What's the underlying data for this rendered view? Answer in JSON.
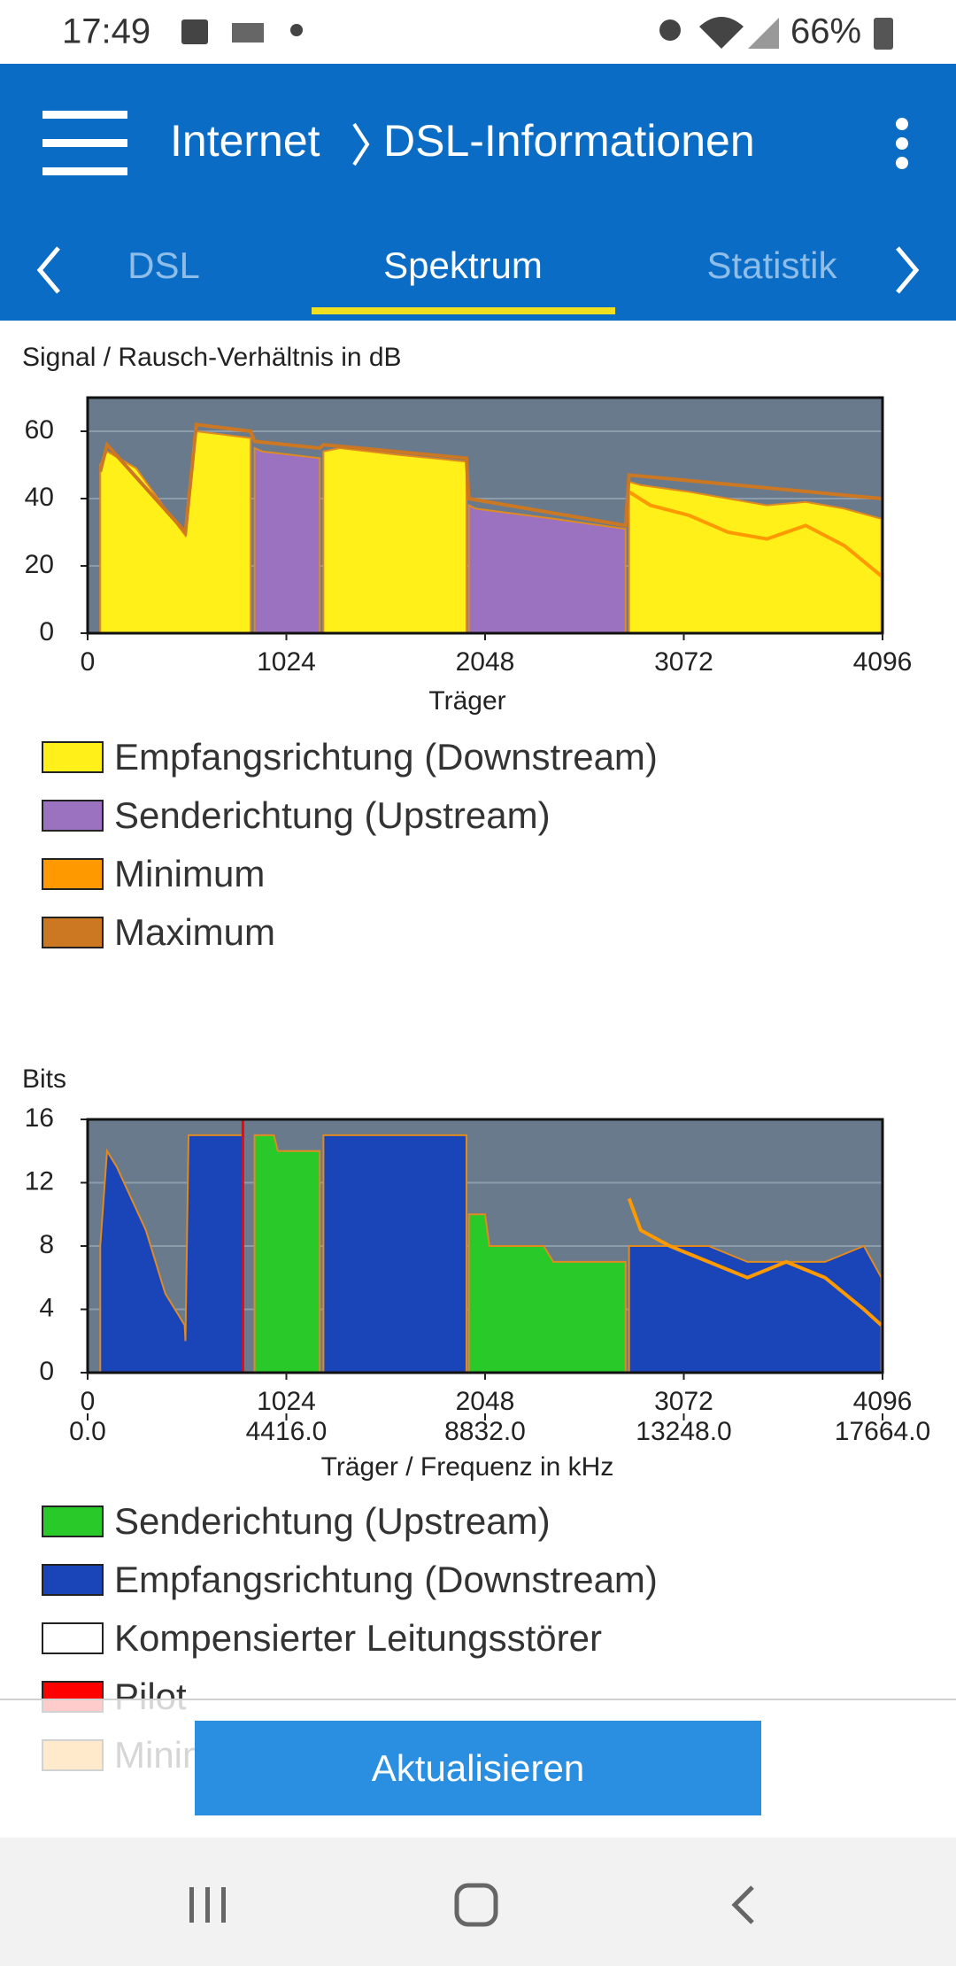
{
  "status_bar": {
    "time": "17:49",
    "battery": "66%"
  },
  "app_bar": {
    "section": "Internet",
    "page": "DSL-Informationen"
  },
  "tabs": [
    "DSL",
    "Spektrum",
    "Statistik"
  ],
  "chart_data": [
    {
      "type": "area",
      "title": "Signal / Rausch-Verhältnis in dB",
      "x_label": "Träger",
      "xlim": [
        0,
        4096
      ],
      "xticks": [
        0,
        1024,
        2048,
        3072,
        4096
      ],
      "ylim": [
        0,
        70
      ],
      "yticks": [
        0,
        20,
        40,
        60
      ],
      "grid": true,
      "series": [
        {
          "name": "Empfangsrichtung (Downstream)",
          "color": "#fff01a",
          "style": "area",
          "x": [
            65,
            100,
            250,
            400,
            504,
            530,
            560,
            700,
            840,
            1000,
            1215,
            1300,
            1600,
            1952,
            2300,
            2790,
            2850,
            3100,
            3300,
            3500,
            3700,
            3900,
            4090
          ],
          "values": [
            50,
            54,
            49,
            37,
            29,
            45,
            60,
            59,
            58,
            null,
            54,
            55,
            53,
            51,
            null,
            45,
            44,
            42,
            40,
            38,
            39,
            37,
            34
          ]
        },
        {
          "name": "Senderichtung (Upstream)",
          "color": "#9b72c0",
          "style": "area",
          "x": [
            860,
            900,
            1196,
            1500,
            1964,
            2000,
            2400,
            2772
          ],
          "values": [
            55,
            54,
            52,
            null,
            38,
            37,
            34,
            31
          ]
        },
        {
          "name": "Minimum",
          "color": "#ff9900",
          "style": "line",
          "x": [
            2790,
            2900,
            3100,
            3300,
            3500,
            3700,
            3900,
            4090
          ],
          "values": [
            42,
            38,
            35,
            30,
            28,
            32,
            26,
            17
          ]
        },
        {
          "name": "Maximum",
          "color": "#cc7722",
          "style": "line",
          "x": [
            65,
            100,
            504,
            560,
            840,
            860,
            1196,
            1215,
            1952,
            1964,
            2772,
            2790,
            4090
          ],
          "values": [
            48,
            56,
            30,
            62,
            60,
            57,
            55,
            56,
            52,
            40,
            32,
            47,
            40
          ]
        }
      ]
    },
    {
      "type": "area",
      "title": "Bits",
      "x_label": "Träger / Frequenz in kHz",
      "xlim": [
        0,
        4096
      ],
      "xticks": [
        0,
        1024,
        2048,
        3072,
        4096
      ],
      "x2lim": [
        0,
        17664
      ],
      "x2ticks": [
        {
          "value": 0,
          "label": "0.0"
        },
        {
          "value": 4416,
          "label": "4416.0"
        },
        {
          "value": 8832,
          "label": "8832.0"
        },
        {
          "value": 13248,
          "label": "13248.0"
        },
        {
          "value": 17664,
          "label": "17664.0"
        }
      ],
      "ylim": [
        0,
        16
      ],
      "yticks": [
        0,
        4,
        8,
        12,
        16
      ],
      "grid": true,
      "series": [
        {
          "name": "Senderichtung (Upstream)",
          "color": "#2ac92a",
          "style": "area",
          "x": [
            860,
            960,
            980,
            1196,
            1500,
            1964,
            2048,
            2070,
            2350,
            2400,
            2772
          ],
          "values": [
            15,
            15,
            14,
            14,
            null,
            10,
            10,
            8,
            8,
            7,
            7
          ]
        },
        {
          "name": "Empfangsrichtung (Downstream)",
          "color": "#1a45b8",
          "style": "area",
          "x": [
            65,
            100,
            150,
            300,
            400,
            450,
            500,
            504,
            520,
            540,
            800,
            850,
            1215,
            1400,
            1952,
            2400,
            2790,
            2850,
            3000,
            3200,
            3400,
            3600,
            3800,
            4000,
            4090
          ],
          "values": [
            8,
            14,
            13,
            9,
            5,
            4,
            3,
            2,
            15,
            15,
            15,
            null,
            15,
            15,
            15,
            null,
            8,
            8,
            8,
            8,
            7,
            7,
            7,
            8,
            6
          ]
        },
        {
          "name": "Kompensierter Leitungsstörer",
          "color": "#ffffff",
          "style": "line",
          "x": [],
          "values": []
        },
        {
          "name": "Pilot",
          "color": "#ff0000",
          "style": "bar",
          "x": [
            800
          ],
          "values": [
            16
          ]
        },
        {
          "name": "Minimum",
          "color": "#ff9900",
          "style": "line",
          "x": [
            2790,
            2850,
            3000,
            3200,
            3400,
            3600,
            3800,
            4000,
            4090
          ],
          "values": [
            11,
            9,
            8,
            7,
            6,
            7,
            6,
            4,
            3
          ]
        }
      ]
    }
  ],
  "button": "Aktualisieren"
}
